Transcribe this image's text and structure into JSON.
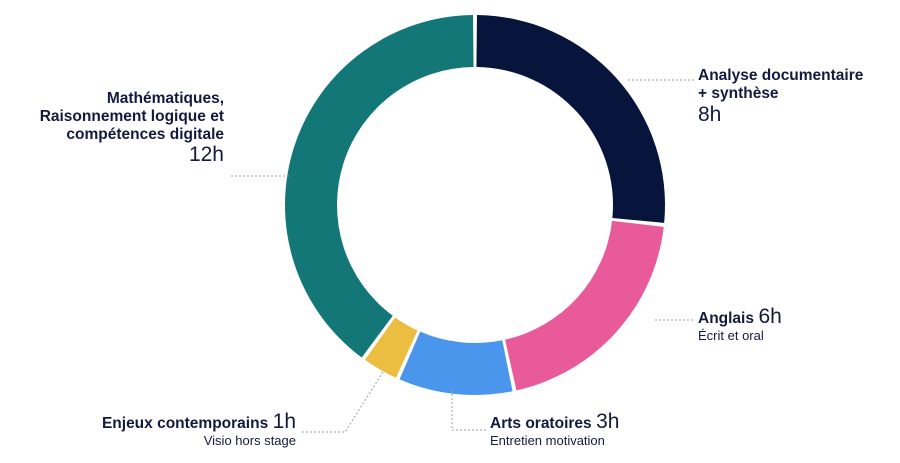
{
  "chart_data": {
    "type": "pie",
    "style": "donut",
    "series": [
      {
        "name_lines": [
          "Analyse documentaire",
          "+ synthèse"
        ],
        "hours_label": "8h",
        "value": 8,
        "sub": "",
        "color": "#07143b"
      },
      {
        "name_lines": [
          "Anglais"
        ],
        "hours_label": "6h",
        "value": 6,
        "sub": "Écrit et oral",
        "color": "#e85a9a"
      },
      {
        "name_lines": [
          "Arts oratoires"
        ],
        "hours_label": "3h",
        "value": 3,
        "sub": "Entretien motivation",
        "color": "#4a96ed"
      },
      {
        "name_lines": [
          "Enjeux contemporains"
        ],
        "hours_label": "1h",
        "value": 1,
        "sub": "Visio hors stage",
        "color": "#ebbd40"
      },
      {
        "name_lines": [
          "Mathématiques,",
          "Raisonnement logique et",
          "compétences digitale"
        ],
        "hours_label": "12h",
        "value": 12,
        "sub": "",
        "color": "#137778"
      }
    ],
    "total": 30,
    "legend": "none"
  },
  "colors": {
    "leader_line": "#9aa0a6",
    "text": "#141a3d"
  }
}
